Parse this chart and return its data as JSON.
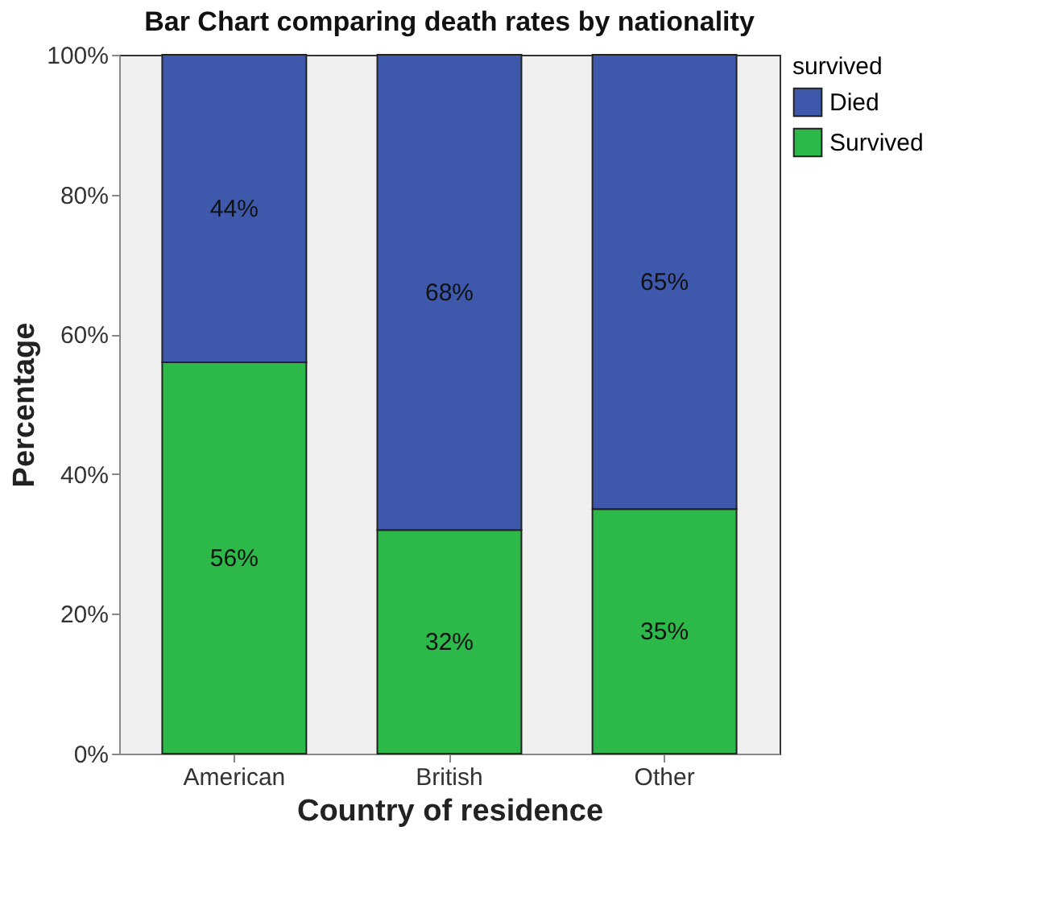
{
  "chart_data": {
    "type": "bar",
    "title": "Bar Chart comparing death rates by nationality",
    "xlabel": "Country of residence",
    "ylabel": "Percentage",
    "legend_title": "survived",
    "categories": [
      "American",
      "British",
      "Other"
    ],
    "stacked": true,
    "series": [
      {
        "name": "Survived",
        "color": "#2db84a",
        "values": [
          56,
          32,
          35
        ],
        "value_labels": [
          "56%",
          "32%",
          "35%"
        ]
      },
      {
        "name": "Died",
        "color": "#3e58ac",
        "values": [
          44,
          68,
          65
        ],
        "value_labels": [
          "44%",
          "68%",
          "65%"
        ]
      }
    ],
    "ylim": [
      0,
      100
    ],
    "yticks": [
      {
        "value": 0,
        "label": "0%"
      },
      {
        "value": 20,
        "label": "20%"
      },
      {
        "value": 40,
        "label": "40%"
      },
      {
        "value": 60,
        "label": "60%"
      },
      {
        "value": 80,
        "label": "80%"
      },
      {
        "value": 100,
        "label": "100%"
      }
    ],
    "legend": "top right",
    "grid": false
  }
}
